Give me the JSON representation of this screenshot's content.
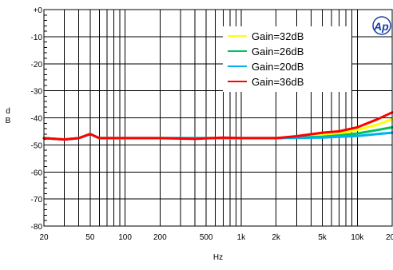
{
  "chart_data": {
    "type": "line",
    "title": "",
    "xlabel": "Hz",
    "ylabel": "d\nB",
    "x_scale": "log",
    "xlim": [
      20,
      20000
    ],
    "ylim": [
      -80,
      0
    ],
    "x_ticks": [
      {
        "value": 20,
        "label": "20"
      },
      {
        "value": 50,
        "label": "50"
      },
      {
        "value": 100,
        "label": "100"
      },
      {
        "value": 200,
        "label": "200"
      },
      {
        "value": 500,
        "label": "500"
      },
      {
        "value": 1000,
        "label": "1k"
      },
      {
        "value": 2000,
        "label": "2k"
      },
      {
        "value": 5000,
        "label": "5k"
      },
      {
        "value": 10000,
        "label": "10k"
      },
      {
        "value": 20000,
        "label": "20k"
      }
    ],
    "y_ticks": [
      {
        "value": 0,
        "label": "+0"
      },
      {
        "value": -10,
        "label": "-10"
      },
      {
        "value": -20,
        "label": "-20"
      },
      {
        "value": -30,
        "label": "-30"
      },
      {
        "value": -40,
        "label": "-40"
      },
      {
        "value": -50,
        "label": "-50"
      },
      {
        "value": -60,
        "label": "-60"
      },
      {
        "value": -70,
        "label": "-70"
      },
      {
        "value": -80,
        "label": "-80"
      }
    ],
    "grid": true,
    "legend_position": "top-right",
    "logo_text": "Ap",
    "series": [
      {
        "name": "Gain=32dB",
        "color": "#ffff00",
        "x": [
          20,
          30,
          40,
          50,
          60,
          100,
          200,
          400,
          700,
          1000,
          2000,
          3000,
          5000,
          7000,
          10000,
          15000,
          20000
        ],
        "y": [
          -47.5,
          -48,
          -47.5,
          -46,
          -47.5,
          -47.5,
          -47.5,
          -47.5,
          -47.5,
          -47.5,
          -47.5,
          -47.2,
          -46.5,
          -45.8,
          -44.5,
          -42.5,
          -40.5
        ]
      },
      {
        "name": "Gain=26dB",
        "color": "#00c060",
        "x": [
          20,
          30,
          40,
          50,
          60,
          100,
          200,
          400,
          700,
          1000,
          2000,
          3000,
          5000,
          7000,
          10000,
          15000,
          20000
        ],
        "y": [
          -47.5,
          -48,
          -47.5,
          -46,
          -47.5,
          -47.5,
          -47.5,
          -47.5,
          -47.5,
          -47.5,
          -47.5,
          -47.3,
          -47,
          -46.5,
          -45.8,
          -44.5,
          -43.5
        ]
      },
      {
        "name": "Gain=20dB",
        "color": "#00b0f0",
        "x": [
          20,
          30,
          40,
          50,
          60,
          100,
          200,
          400,
          700,
          1000,
          2000,
          3000,
          5000,
          7000,
          10000,
          15000,
          20000
        ],
        "y": [
          -47.5,
          -48,
          -47.5,
          -46,
          -47.5,
          -47.5,
          -47.5,
          -47.5,
          -47.5,
          -47.5,
          -47.5,
          -47.4,
          -47.3,
          -47,
          -46.7,
          -46,
          -45.5
        ]
      },
      {
        "name": "Gain=36dB",
        "color": "#ff0000",
        "x": [
          20,
          30,
          40,
          50,
          60,
          100,
          200,
          400,
          700,
          1000,
          2000,
          3000,
          5000,
          7000,
          10000,
          15000,
          20000
        ],
        "y": [
          -47.5,
          -48,
          -47.5,
          -46,
          -47.5,
          -47.5,
          -47.5,
          -47.8,
          -47.3,
          -47.5,
          -47.5,
          -46.8,
          -45.5,
          -45,
          -43.5,
          -40.5,
          -38
        ]
      }
    ]
  }
}
